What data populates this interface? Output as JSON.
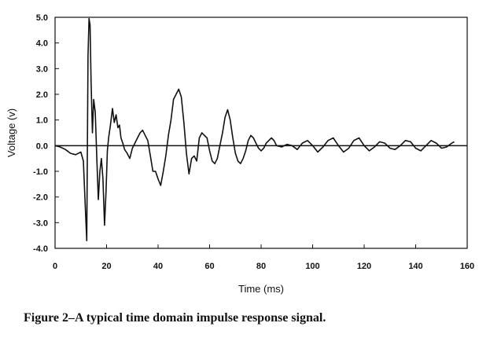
{
  "figure": {
    "caption": "Figure 2–A typical time domain impulse response signal."
  },
  "chart_data": {
    "type": "line",
    "title": "",
    "xlabel": "Time (ms)",
    "ylabel": "Voltage (v)",
    "xlim": [
      0,
      160
    ],
    "ylim": [
      -4.0,
      5.0
    ],
    "x_ticks": [
      0,
      20,
      40,
      60,
      80,
      100,
      120,
      140,
      160
    ],
    "x_tick_labels": [
      "0",
      "20",
      "40",
      "60",
      "80",
      "100",
      "120",
      "140",
      "160"
    ],
    "y_ticks": [
      5.0,
      4.0,
      3.0,
      2.0,
      1.0,
      0.0,
      -1.0,
      -2.0,
      -3.0,
      -4.0
    ],
    "y_tick_labels": [
      "5.0",
      "4.0",
      "3.0",
      "2.0",
      "1.0",
      "0.0",
      "-1.0",
      "-2.0",
      "-3.0",
      "-4.0"
    ],
    "grid": false,
    "zero_line": true,
    "line_color": "#111111",
    "series": [
      {
        "x": [
          0,
          2,
          4,
          6,
          8,
          10,
          11,
          11.8,
          12.3,
          12.8,
          13.2,
          13.6,
          14,
          14.5,
          15,
          15.6,
          16.2,
          16.8,
          17.4,
          18,
          18.6,
          19.2,
          19.8,
          20.3,
          20.8,
          21.5,
          22.3,
          23,
          23.7,
          24.4,
          25,
          25.6,
          26.3,
          27,
          28,
          29,
          30,
          31,
          32,
          33,
          34,
          35,
          36,
          37,
          38,
          39,
          40,
          41,
          42,
          43,
          44,
          45,
          46,
          47,
          48,
          49,
          50,
          51,
          52,
          53,
          54,
          55,
          56,
          57,
          58,
          59,
          60,
          61,
          62,
          63,
          64,
          65,
          66,
          67,
          68,
          69,
          70,
          71,
          72,
          73,
          74,
          75,
          76,
          77,
          78,
          79,
          80,
          81,
          82,
          83,
          84,
          85,
          86,
          88,
          90,
          92,
          94,
          96,
          98,
          100,
          102,
          104,
          106,
          108,
          110,
          112,
          114,
          116,
          118,
          120,
          122,
          124,
          126,
          128,
          130,
          132,
          134,
          136,
          138,
          140,
          142,
          144,
          146,
          148,
          150,
          152,
          154,
          155
        ],
        "values": [
          0.0,
          -0.05,
          -0.15,
          -0.3,
          -0.35,
          -0.25,
          -0.6,
          -2.5,
          -3.7,
          3.5,
          4.95,
          4.7,
          2.5,
          0.5,
          1.8,
          1.3,
          -0.5,
          -2.1,
          -1.0,
          -0.5,
          -1.3,
          -3.1,
          -1.8,
          -0.2,
          0.3,
          0.8,
          1.45,
          0.9,
          1.2,
          0.7,
          0.8,
          0.3,
          0.1,
          -0.15,
          -0.3,
          -0.5,
          -0.1,
          0.1,
          0.3,
          0.5,
          0.6,
          0.4,
          0.2,
          -0.4,
          -1.0,
          -1.0,
          -1.3,
          -1.55,
          -1.0,
          -0.4,
          0.4,
          1.0,
          1.8,
          2.0,
          2.2,
          1.9,
          0.9,
          -0.3,
          -1.1,
          -0.5,
          -0.4,
          -0.6,
          0.3,
          0.5,
          0.4,
          0.3,
          -0.2,
          -0.6,
          -0.7,
          -0.5,
          0.0,
          0.5,
          1.1,
          1.4,
          1.0,
          0.3,
          -0.3,
          -0.6,
          -0.7,
          -0.5,
          -0.2,
          0.2,
          0.4,
          0.3,
          0.1,
          -0.1,
          -0.2,
          -0.1,
          0.1,
          0.2,
          0.3,
          0.2,
          0.0,
          -0.05,
          0.05,
          0.0,
          -0.15,
          0.1,
          0.2,
          0.0,
          -0.25,
          -0.05,
          0.2,
          0.3,
          0.0,
          -0.25,
          -0.1,
          0.2,
          0.3,
          0.0,
          -0.2,
          -0.05,
          0.15,
          0.1,
          -0.1,
          -0.15,
          0.0,
          0.2,
          0.15,
          -0.1,
          -0.2,
          0.0,
          0.2,
          0.1,
          -0.1,
          -0.05,
          0.1,
          0.15
        ]
      }
    ]
  }
}
